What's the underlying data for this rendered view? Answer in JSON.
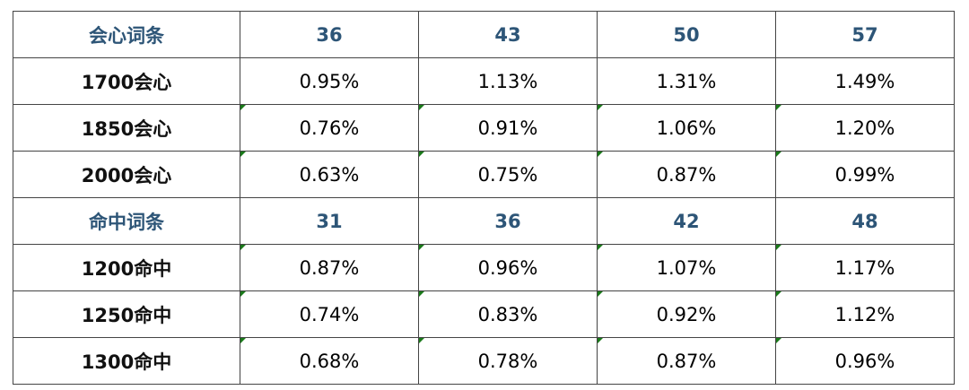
{
  "table": {
    "rows": [
      {
        "type": "header",
        "cells": [
          "会心词条",
          "36",
          "43",
          "50",
          "57"
        ]
      },
      {
        "type": "data",
        "cells": [
          "1700会心",
          "0.95%",
          "1.13%",
          "1.31%",
          "1.49%"
        ]
      },
      {
        "type": "data",
        "cells": [
          "1850会心",
          "0.76%",
          "0.91%",
          "1.06%",
          "1.20%"
        ]
      },
      {
        "type": "data",
        "cells": [
          "2000会心",
          "0.63%",
          "0.75%",
          "0.87%",
          "0.99%"
        ]
      },
      {
        "type": "header",
        "cells": [
          "命中词条",
          "31",
          "36",
          "42",
          "48"
        ]
      },
      {
        "type": "data",
        "cells": [
          "1200命中",
          "0.87%",
          "0.96%",
          "1.07%",
          "1.17%"
        ]
      },
      {
        "type": "data",
        "cells": [
          "1250命中",
          "0.74%",
          "0.83%",
          "0.92%",
          "1.12%"
        ]
      },
      {
        "type": "data",
        "cells": [
          "1300命中",
          "0.68%",
          "0.78%",
          "0.87%",
          "0.96%"
        ]
      }
    ]
  }
}
